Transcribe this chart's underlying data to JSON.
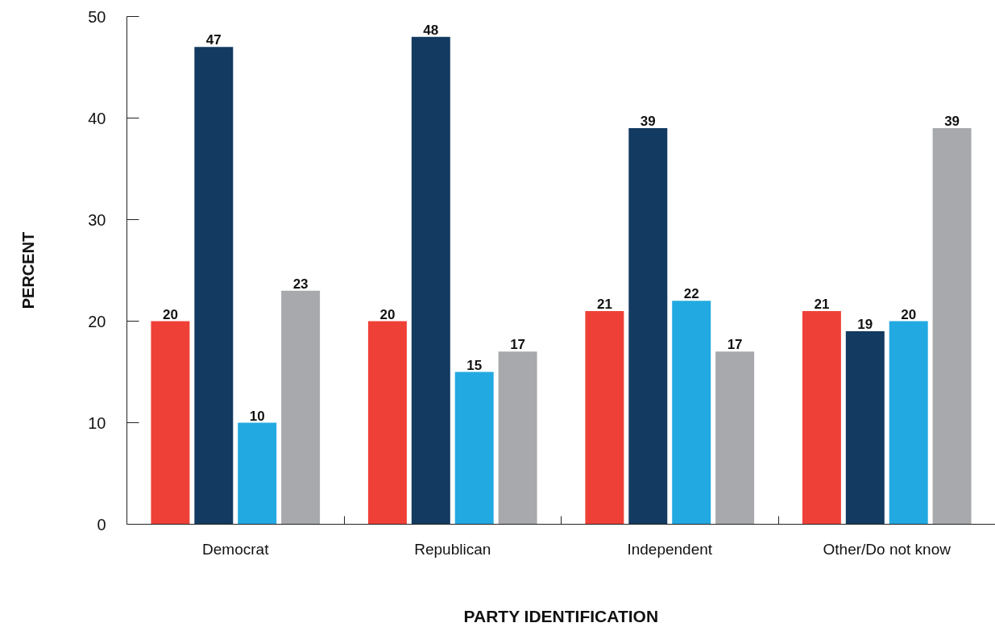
{
  "chart_data": {
    "type": "bar",
    "xlabel": "PARTY IDENTIFICATION",
    "ylabel": "PERCENT",
    "categories": [
      "Democrat",
      "Republican",
      "Independent",
      "Other/Do not know"
    ],
    "series": [
      {
        "color": "#ef4038",
        "values": [
          20,
          20,
          21,
          21
        ]
      },
      {
        "color": "#133a60",
        "values": [
          47,
          48,
          39,
          19
        ]
      },
      {
        "color": "#23a9e1",
        "values": [
          10,
          15,
          22,
          20
        ]
      },
      {
        "color": "#a7a9ac",
        "values": [
          23,
          17,
          17,
          39
        ]
      }
    ],
    "ylim": [
      0,
      50
    ],
    "yticks": [
      0,
      10,
      20,
      30,
      40,
      50
    ],
    "grid": false,
    "data_labels": true
  }
}
